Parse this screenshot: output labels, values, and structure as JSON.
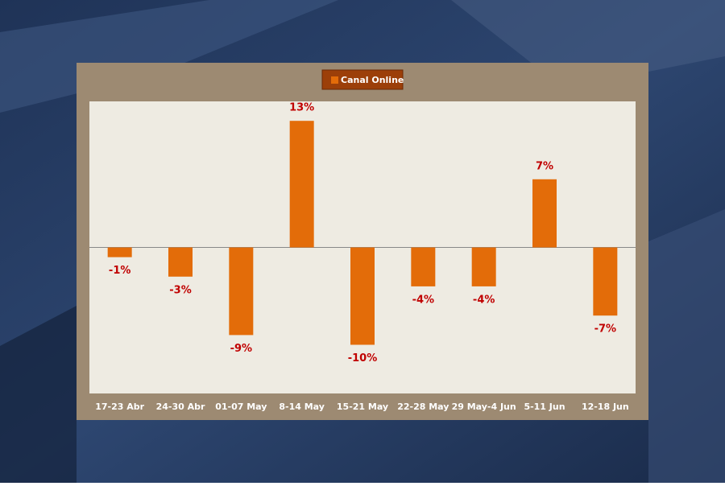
{
  "chart_data": {
    "type": "bar",
    "categories": [
      "17-23 Abr",
      "24-30 Abr",
      "01-07 May",
      "8-14 May",
      "15-21 May",
      "22-28 May",
      "29 May-4 Jun",
      "5-11 Jun",
      "12-18 Jun"
    ],
    "series": [
      {
        "name": "Canal Online",
        "color": "#e36c09",
        "values": [
          -1,
          -3,
          -9,
          13,
          -10,
          -4,
          -4,
          7,
          -7
        ],
        "value_labels": [
          "-1%",
          "-3%",
          "-9%",
          "13%",
          "-10%",
          "-4%",
          "-4%",
          "7%",
          "-7%"
        ]
      }
    ],
    "ylim": [
      -15,
      15
    ],
    "legend": "top"
  }
}
